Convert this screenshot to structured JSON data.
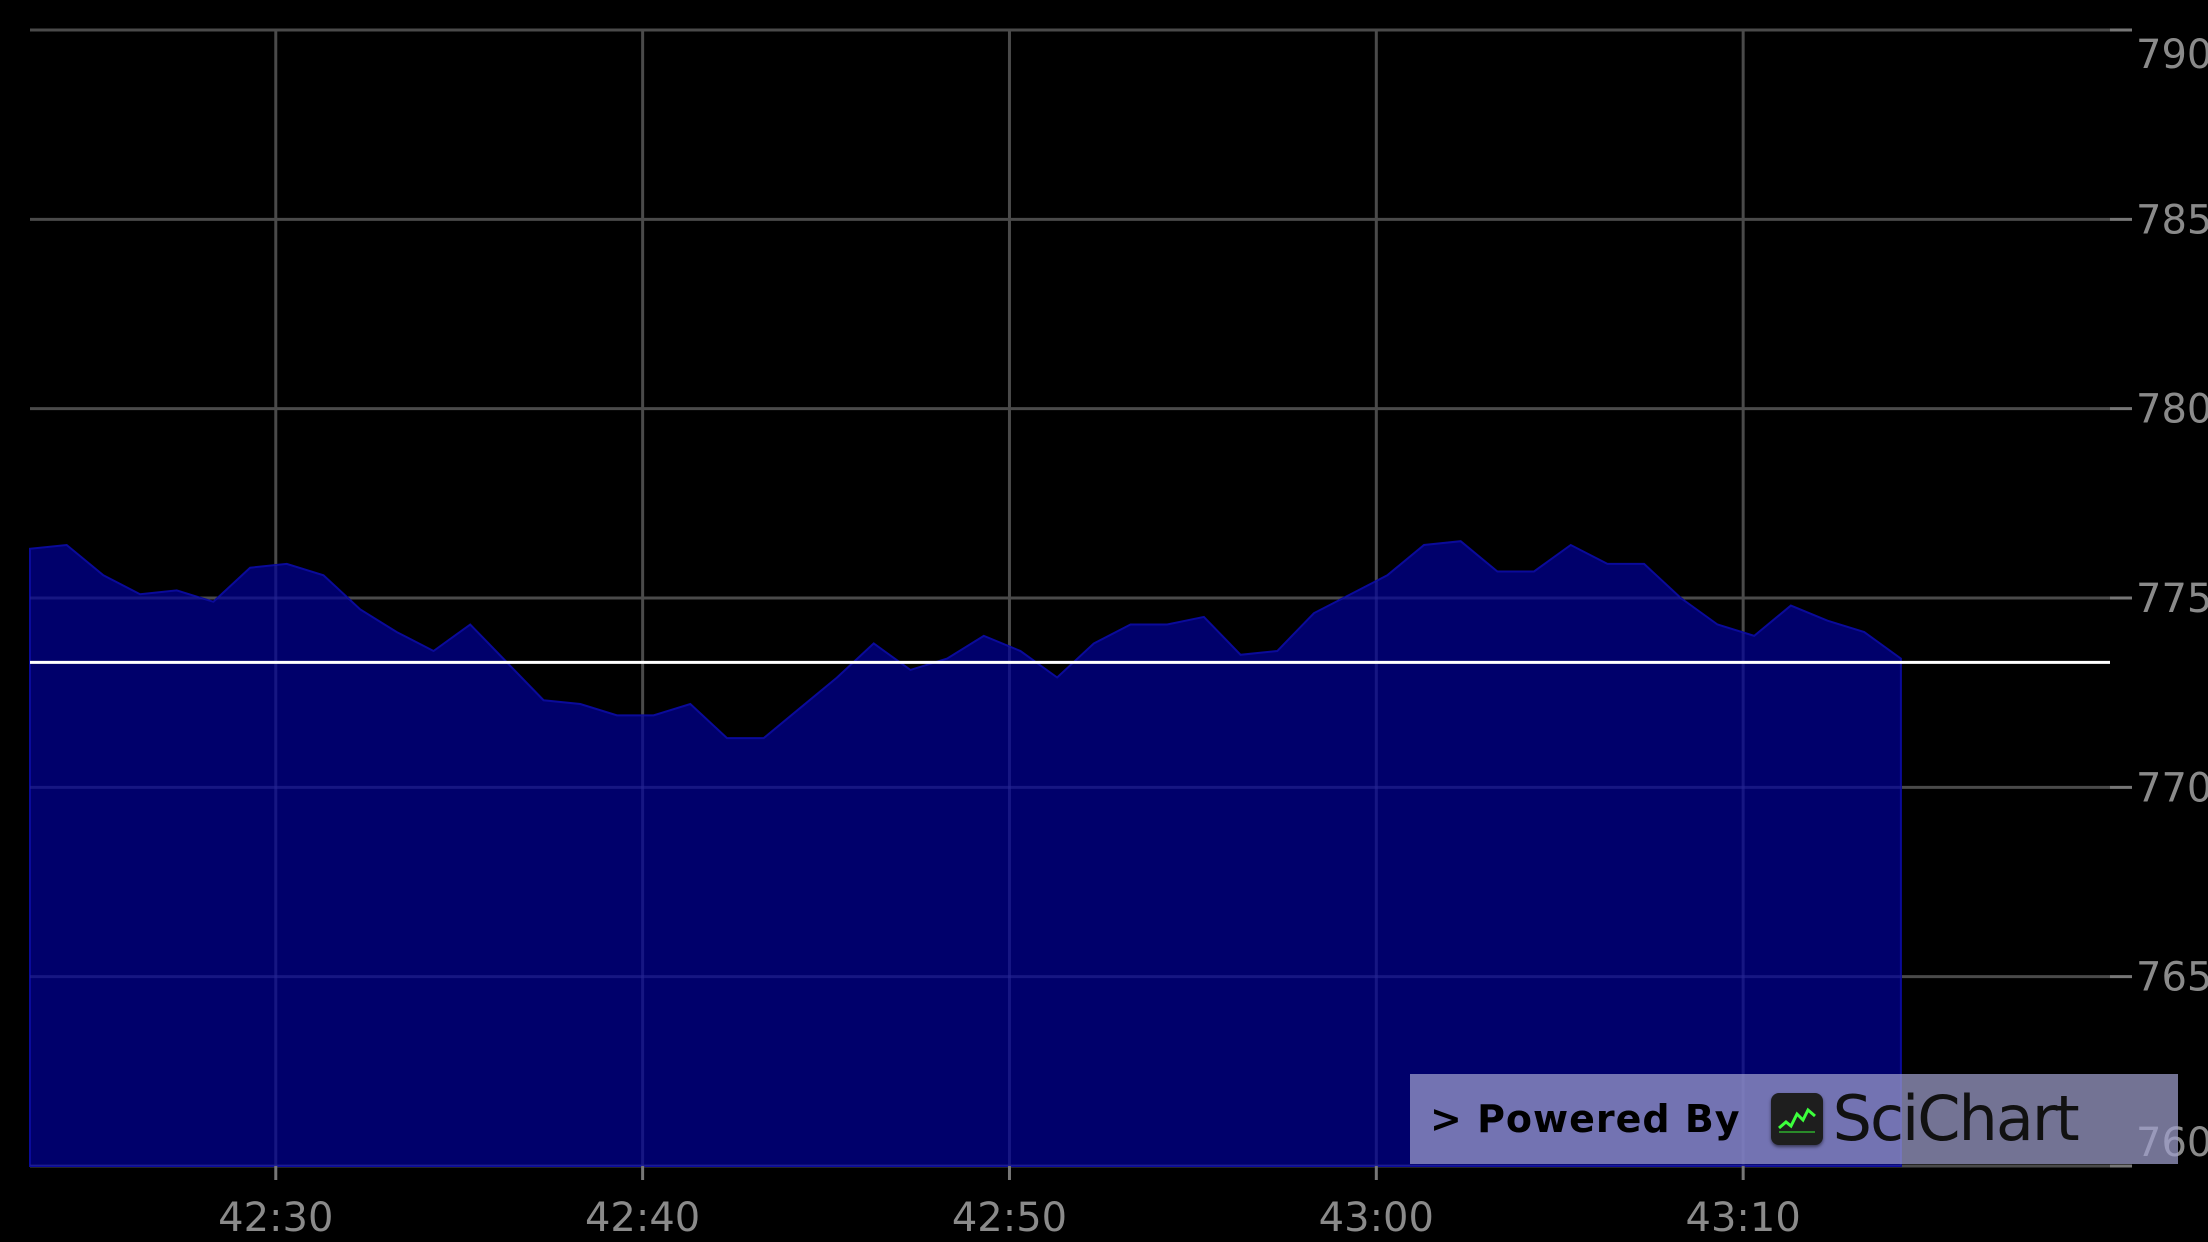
{
  "chart_data": {
    "type": "area",
    "title": "",
    "xlabel": "",
    "ylabel": "",
    "x_ticks": [
      "42:30",
      "42:40",
      "42:50",
      "43:00",
      "43:10"
    ],
    "x_tick_seconds": [
      30,
      40,
      50,
      60,
      70
    ],
    "xlim_seconds": [
      23.3,
      80.0
    ],
    "y_ticks": [
      "790",
      "785",
      "780",
      "775",
      "770",
      "765",
      "760"
    ],
    "ylim": [
      760,
      790
    ],
    "grid": true,
    "y_axis_position": "right",
    "fill_color": "#00006b",
    "line_color": "#0a0a9a",
    "horizontal_line": {
      "value": 773.3,
      "color": "#ffffff"
    },
    "series": [
      {
        "x_seconds": [
          23.3,
          24.3,
          25.3,
          26.3,
          27.3,
          28.3,
          29.3,
          30.3,
          31.3,
          32.3,
          33.3,
          34.3,
          35.3,
          36.3,
          37.3,
          38.3,
          39.3,
          40.3,
          41.3,
          42.3,
          43.3,
          44.3,
          45.3,
          46.3,
          47.3,
          48.3,
          49.3,
          50.3,
          51.3,
          52.3,
          53.3,
          54.3,
          55.3,
          56.3,
          57.3,
          58.3,
          59.3,
          60.3,
          61.3,
          62.3,
          63.3,
          64.3,
          65.3,
          66.3,
          67.3,
          68.3,
          69.3,
          70.3,
          71.3,
          72.3,
          73.3,
          74.3
        ],
        "values": [
          776.3,
          776.4,
          775.6,
          775.1,
          775.2,
          774.9,
          775.8,
          775.9,
          775.6,
          774.7,
          774.1,
          773.6,
          774.3,
          773.3,
          772.3,
          772.2,
          771.9,
          771.9,
          772.2,
          771.3,
          771.3,
          772.1,
          772.9,
          773.8,
          773.1,
          773.4,
          774.0,
          773.6,
          772.9,
          773.8,
          774.3,
          774.3,
          774.5,
          773.5,
          773.6,
          774.6,
          775.1,
          775.6,
          776.4,
          776.5,
          775.7,
          775.7,
          776.4,
          775.9,
          775.9,
          775.0,
          774.3,
          774.0,
          774.8,
          774.4,
          774.1,
          773.4
        ]
      }
    ]
  },
  "watermark": {
    "prefix": "> Powered By",
    "brand": "SciChart",
    "icon": "scichart-logo-icon"
  }
}
